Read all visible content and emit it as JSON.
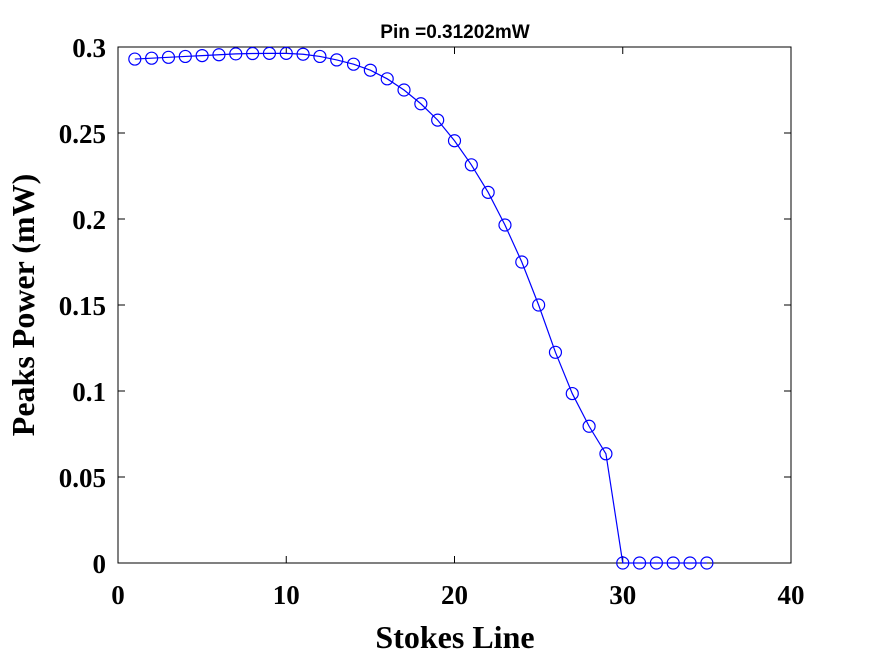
{
  "chart_data": {
    "type": "line",
    "title": "Pin =0.31202mW",
    "xlabel": "Stokes Line",
    "ylabel": "Peaks Power (mW)",
    "xlim": [
      0,
      40
    ],
    "ylim": [
      0,
      0.3
    ],
    "xticks": [
      0,
      10,
      20,
      30,
      40
    ],
    "xtick_labels": [
      "0",
      "10",
      "20",
      "30",
      "40"
    ],
    "yticks": [
      0,
      0.05,
      0.1,
      0.15,
      0.2,
      0.25,
      0.3
    ],
    "ytick_labels": [
      "0",
      "0.05",
      "0.1",
      "0.15",
      "0.2",
      "0.25",
      "0.3"
    ],
    "grid": false,
    "marker": "circle-open",
    "color": "#0000ff",
    "series": [
      {
        "x": [
          1,
          2,
          3,
          4,
          5,
          6,
          7,
          8,
          9,
          10,
          11,
          12,
          13,
          14,
          15,
          16,
          17,
          18,
          19,
          20,
          21,
          22,
          23,
          24,
          25,
          26,
          27,
          28,
          29,
          30,
          31,
          32,
          33,
          34,
          35
        ],
        "y": [
          0.293,
          0.2935,
          0.294,
          0.2945,
          0.295,
          0.2955,
          0.296,
          0.2962,
          0.2963,
          0.2963,
          0.2958,
          0.2945,
          0.2925,
          0.29,
          0.2865,
          0.2815,
          0.275,
          0.267,
          0.2575,
          0.2455,
          0.2315,
          0.2155,
          0.1965,
          0.175,
          0.15,
          0.1225,
          0.0985,
          0.0795,
          0.0635,
          0,
          0,
          0,
          0,
          0,
          0
        ]
      }
    ]
  }
}
